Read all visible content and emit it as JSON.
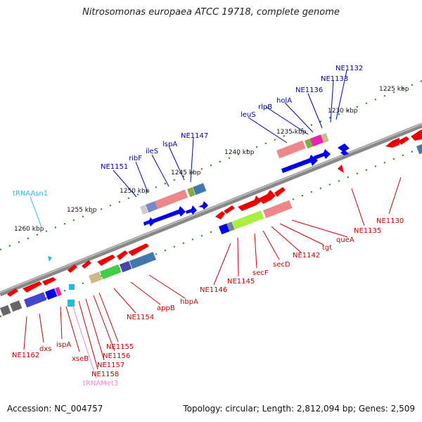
{
  "title": "Nitrosomonas europaea ATCC 19718, complete genome",
  "footer": {
    "accession": "Accession: NC_004757",
    "summary": "Topology: circular; Length: 2,812,094 bp; Genes: 2,509"
  },
  "colors": {
    "top_label": "#0000aa",
    "bottom_label": "#cc0000",
    "trna_top": "#22bbdd",
    "trna_bottom": "#ee88cc",
    "forward_gene": "#0000ee",
    "reverse_gene": "#ee0000",
    "tick": "#118811"
  },
  "kbp_labels": [
    "1225 kbp",
    "1230 kbp",
    "1235 kbp",
    "1240 kbp",
    "1245 kbp",
    "1250 kbp",
    "1255 kbp",
    "1260 kbp"
  ],
  "top_labels": [
    "NE1132",
    "NE1133",
    "NE1136",
    "holA",
    "rlpB",
    "leuS",
    "NE1147",
    "lspA",
    "ileS",
    "ribF",
    "NE1151",
    "tRNAAsn1"
  ],
  "bottom_labels": [
    "NE1130",
    "NE1135",
    "queA",
    "tgt",
    "NE1142",
    "secD",
    "secF",
    "NE1145",
    "NE1146",
    "hbpA",
    "appB",
    "NE1154",
    "NE1155",
    "NE1156",
    "NE1157",
    "NE1158",
    "tRNAMet3",
    "xseB",
    "ispA",
    "dxs",
    "NE1162"
  ]
}
